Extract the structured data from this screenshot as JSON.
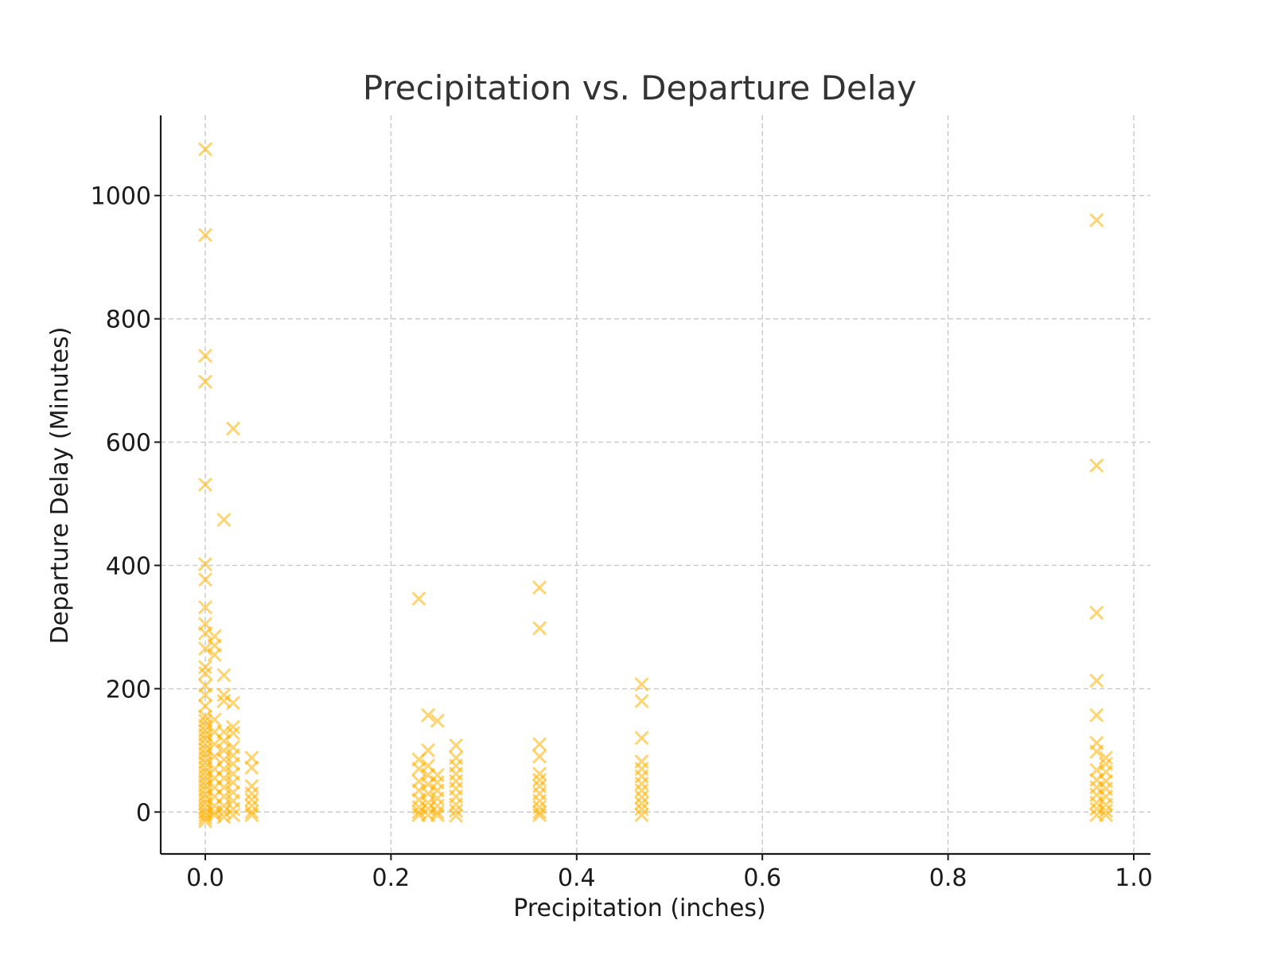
{
  "chart_data": {
    "type": "scatter",
    "title": "Precipitation vs. Departure Delay",
    "xlabel": "Precipitation (inches)",
    "ylabel": "Departure Delay (Minutes)",
    "xlim": [
      -0.048,
      1.018
    ],
    "ylim": [
      -68,
      1130
    ],
    "xticks": [
      0.0,
      0.2,
      0.4,
      0.6,
      0.8,
      1.0
    ],
    "xtick_labels": [
      "0.0",
      "0.2",
      "0.4",
      "0.6",
      "0.8",
      "1.0"
    ],
    "yticks": [
      0,
      200,
      400,
      600,
      800,
      1000
    ],
    "ytick_labels": [
      "0",
      "200",
      "400",
      "600",
      "800",
      "1000"
    ],
    "grid": true,
    "marker": "x",
    "marker_color": "#FFB000",
    "marker_alpha": 0.55,
    "series": [
      {
        "points": [
          [
            0.0,
            1075
          ],
          [
            0.0,
            936
          ],
          [
            0.0,
            740
          ],
          [
            0.0,
            698
          ],
          [
            0.0,
            531
          ],
          [
            0.0,
            402
          ],
          [
            0.0,
            377
          ],
          [
            0.0,
            332
          ],
          [
            0.0,
            305
          ],
          [
            0.0,
            290
          ],
          [
            0.0,
            265
          ],
          [
            0.0,
            235
          ],
          [
            0.0,
            225
          ],
          [
            0.0,
            205
          ],
          [
            0.0,
            190
          ],
          [
            0.0,
            172
          ],
          [
            0.0,
            155
          ],
          [
            0.0,
            148
          ],
          [
            0.0,
            140
          ],
          [
            0.0,
            132
          ],
          [
            0.0,
            125
          ],
          [
            0.0,
            118
          ],
          [
            0.0,
            110
          ],
          [
            0.0,
            102
          ],
          [
            0.0,
            95
          ],
          [
            0.0,
            88
          ],
          [
            0.0,
            80
          ],
          [
            0.0,
            72
          ],
          [
            0.0,
            65
          ],
          [
            0.0,
            58
          ],
          [
            0.0,
            50
          ],
          [
            0.0,
            43
          ],
          [
            0.0,
            36
          ],
          [
            0.0,
            28
          ],
          [
            0.0,
            21
          ],
          [
            0.0,
            14
          ],
          [
            0.0,
            7
          ],
          [
            0.0,
            0
          ],
          [
            0.0,
            -5
          ],
          [
            0.0,
            -10
          ],
          [
            0.0,
            -15
          ],
          [
            0.01,
            285
          ],
          [
            0.01,
            270
          ],
          [
            0.01,
            255
          ],
          [
            0.01,
            150
          ],
          [
            0.01,
            130
          ],
          [
            0.01,
            110
          ],
          [
            0.01,
            90
          ],
          [
            0.01,
            70
          ],
          [
            0.01,
            55
          ],
          [
            0.01,
            40
          ],
          [
            0.01,
            25
          ],
          [
            0.01,
            10
          ],
          [
            0.01,
            0
          ],
          [
            0.01,
            -5
          ],
          [
            0.02,
            474
          ],
          [
            0.02,
            222
          ],
          [
            0.02,
            190
          ],
          [
            0.02,
            180
          ],
          [
            0.02,
            130
          ],
          [
            0.02,
            115
          ],
          [
            0.02,
            100
          ],
          [
            0.02,
            85
          ],
          [
            0.02,
            70
          ],
          [
            0.02,
            55
          ],
          [
            0.02,
            40
          ],
          [
            0.02,
            25
          ],
          [
            0.02,
            10
          ],
          [
            0.02,
            0
          ],
          [
            0.02,
            -8
          ],
          [
            0.03,
            622
          ],
          [
            0.03,
            177
          ],
          [
            0.03,
            138
          ],
          [
            0.03,
            128
          ],
          [
            0.03,
            105
          ],
          [
            0.03,
            92
          ],
          [
            0.03,
            78
          ],
          [
            0.03,
            62
          ],
          [
            0.03,
            48
          ],
          [
            0.03,
            32
          ],
          [
            0.03,
            18
          ],
          [
            0.03,
            5
          ],
          [
            0.03,
            -5
          ],
          [
            0.05,
            88
          ],
          [
            0.05,
            72
          ],
          [
            0.05,
            42
          ],
          [
            0.05,
            30
          ],
          [
            0.05,
            20
          ],
          [
            0.05,
            10
          ],
          [
            0.05,
            0
          ],
          [
            0.05,
            -5
          ],
          [
            0.23,
            346
          ],
          [
            0.23,
            85
          ],
          [
            0.23,
            70
          ],
          [
            0.23,
            50
          ],
          [
            0.23,
            35
          ],
          [
            0.23,
            20
          ],
          [
            0.23,
            8
          ],
          [
            0.23,
            0
          ],
          [
            0.23,
            -5
          ],
          [
            0.24,
            157
          ],
          [
            0.24,
            100
          ],
          [
            0.24,
            75
          ],
          [
            0.24,
            60
          ],
          [
            0.24,
            45
          ],
          [
            0.24,
            30
          ],
          [
            0.24,
            15
          ],
          [
            0.24,
            5
          ],
          [
            0.24,
            -5
          ],
          [
            0.25,
            148
          ],
          [
            0.25,
            60
          ],
          [
            0.25,
            48
          ],
          [
            0.25,
            35
          ],
          [
            0.25,
            22
          ],
          [
            0.25,
            10
          ],
          [
            0.25,
            0
          ],
          [
            0.25,
            -5
          ],
          [
            0.27,
            108
          ],
          [
            0.27,
            88
          ],
          [
            0.27,
            75
          ],
          [
            0.27,
            62
          ],
          [
            0.27,
            50
          ],
          [
            0.27,
            38
          ],
          [
            0.27,
            25
          ],
          [
            0.27,
            12
          ],
          [
            0.27,
            2
          ],
          [
            0.27,
            -6
          ],
          [
            0.36,
            364
          ],
          [
            0.36,
            298
          ],
          [
            0.36,
            110
          ],
          [
            0.36,
            90
          ],
          [
            0.36,
            62
          ],
          [
            0.36,
            52
          ],
          [
            0.36,
            42
          ],
          [
            0.36,
            30
          ],
          [
            0.36,
            18
          ],
          [
            0.36,
            8
          ],
          [
            0.36,
            0
          ],
          [
            0.36,
            -5
          ],
          [
            0.47,
            207
          ],
          [
            0.47,
            180
          ],
          [
            0.47,
            120
          ],
          [
            0.47,
            82
          ],
          [
            0.47,
            70
          ],
          [
            0.47,
            58
          ],
          [
            0.47,
            46
          ],
          [
            0.47,
            35
          ],
          [
            0.47,
            24
          ],
          [
            0.47,
            14
          ],
          [
            0.47,
            5
          ],
          [
            0.47,
            -5
          ],
          [
            0.96,
            960
          ],
          [
            0.96,
            562
          ],
          [
            0.96,
            323
          ],
          [
            0.96,
            213
          ],
          [
            0.96,
            157
          ],
          [
            0.96,
            112
          ],
          [
            0.96,
            98
          ],
          [
            0.96,
            68
          ],
          [
            0.96,
            52
          ],
          [
            0.96,
            40
          ],
          [
            0.96,
            28
          ],
          [
            0.96,
            15
          ],
          [
            0.96,
            5
          ],
          [
            0.96,
            -5
          ],
          [
            0.97,
            88
          ],
          [
            0.97,
            78
          ],
          [
            0.97,
            65
          ],
          [
            0.97,
            50
          ],
          [
            0.97,
            38
          ],
          [
            0.97,
            25
          ],
          [
            0.97,
            12
          ],
          [
            0.97,
            2
          ],
          [
            0.97,
            -5
          ]
        ]
      }
    ]
  }
}
